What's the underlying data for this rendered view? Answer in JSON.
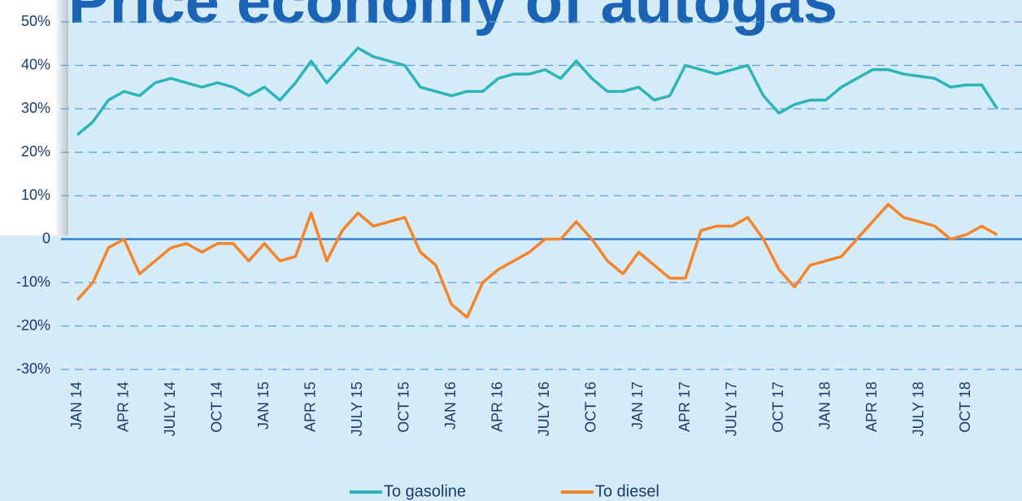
{
  "chart_data": {
    "type": "line",
    "title": "Price economy of autogas",
    "categories": [
      "JAN 14",
      null,
      null,
      "APR 14",
      null,
      null,
      "JULY 14",
      null,
      null,
      "OCT 14",
      null,
      null,
      "JAN 15",
      null,
      null,
      "APR 15",
      null,
      null,
      "JULY 15",
      null,
      null,
      "OCT 15",
      null,
      null,
      "JAN 16",
      null,
      null,
      "APR 16",
      null,
      null,
      "JULY 16",
      null,
      null,
      "OCT 16",
      null,
      null,
      "JAN 17",
      null,
      null,
      "APR 17",
      null,
      null,
      "JULY 17",
      null,
      null,
      "OCT 17",
      null,
      null,
      "JAN 18",
      null,
      null,
      "APR 18",
      null,
      null,
      "JULY 18",
      null,
      null,
      "OCT 18",
      null,
      null
    ],
    "series": [
      {
        "name": "To gasoline",
        "color": "#2bb5b8",
        "values": [
          24,
          27,
          32,
          34,
          33,
          36,
          37,
          36,
          35,
          36,
          35,
          33,
          35,
          32,
          36,
          41,
          36,
          40,
          44,
          42,
          41,
          40,
          35,
          34,
          33,
          34,
          34,
          37,
          38,
          38,
          39,
          37,
          41,
          37,
          34,
          34,
          35,
          32,
          33,
          40,
          39,
          38,
          39,
          40,
          33,
          29,
          31,
          32,
          32,
          35,
          37,
          39,
          39,
          38,
          37.5,
          37,
          35,
          35.5,
          35.5,
          30
        ]
      },
      {
        "name": "To diesel",
        "color": "#f5832a",
        "values": [
          -14,
          -10,
          -2,
          0,
          -8,
          -5,
          -2,
          -1,
          -3,
          -1,
          -1,
          -5,
          -1,
          -5,
          -4,
          6,
          -5,
          2,
          6,
          3,
          4,
          5,
          -3,
          -6,
          -15,
          -18,
          -10,
          -7,
          -5,
          -3,
          0,
          0,
          4,
          0,
          -5,
          -8,
          -3,
          -6,
          -9,
          -9,
          2,
          3,
          3,
          5,
          0,
          -7,
          -11,
          -6,
          -5,
          -4,
          0,
          4,
          8,
          5,
          4,
          3,
          0,
          1,
          3,
          1
        ]
      }
    ],
    "ylim": [
      -30,
      50
    ],
    "yticks": [
      {
        "value": 50,
        "label": "50%"
      },
      {
        "value": 40,
        "label": "40%"
      },
      {
        "value": 30,
        "label": "30%"
      },
      {
        "value": 20,
        "label": "20%"
      },
      {
        "value": 10,
        "label": "10%"
      },
      0,
      {
        "value": -10,
        "label": "-10%"
      },
      {
        "value": -20,
        "label": "-20%"
      },
      {
        "value": -30,
        "label": "-30%"
      }
    ],
    "grid": true,
    "legend": "bottom"
  }
}
